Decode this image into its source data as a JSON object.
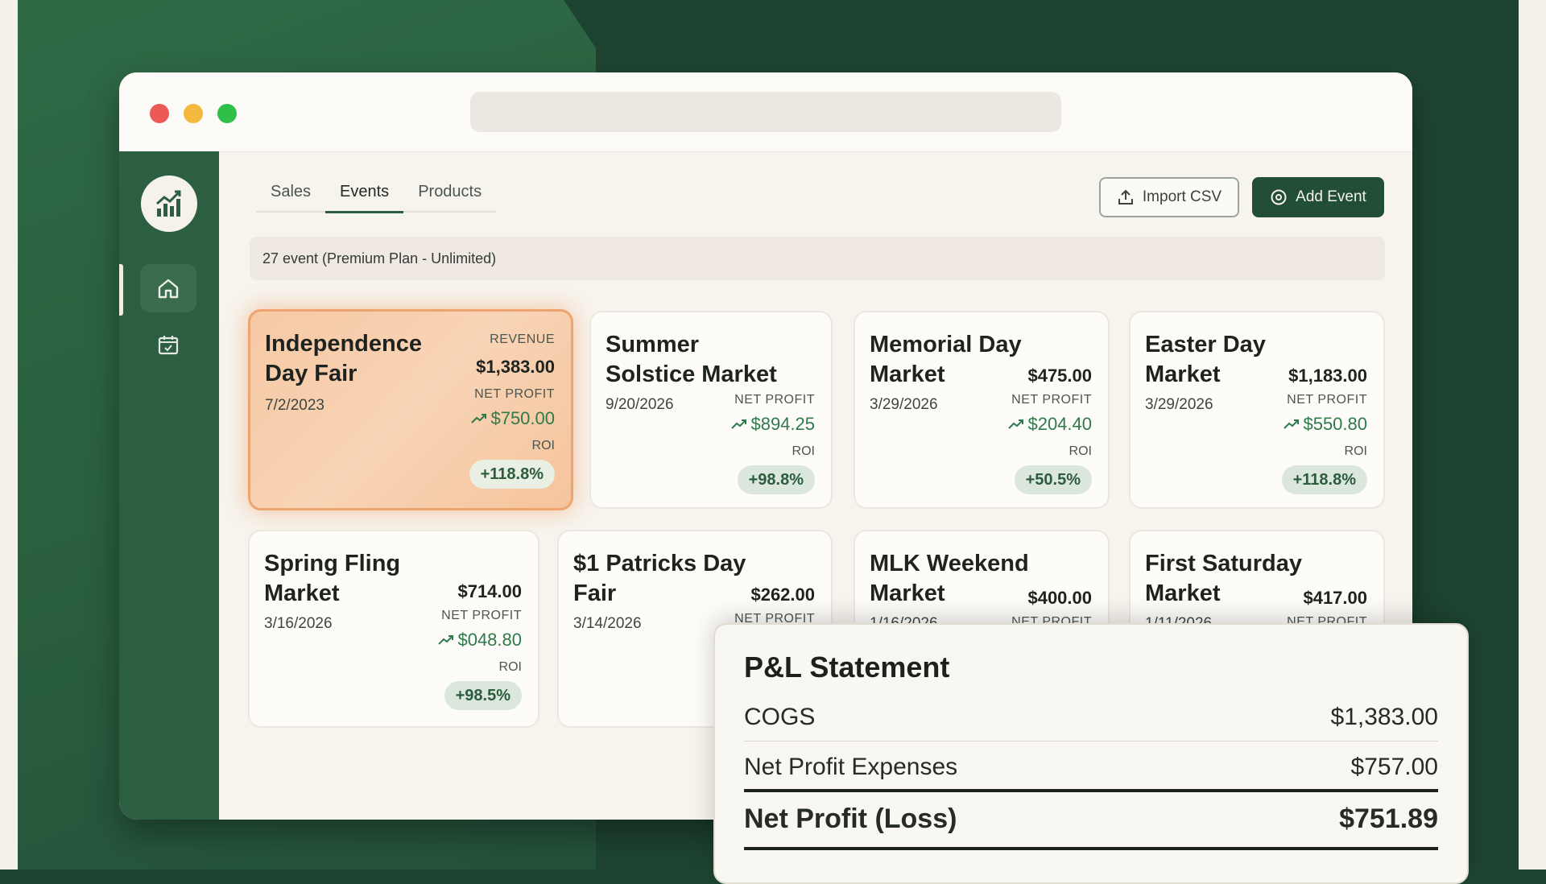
{
  "window": {
    "traffic_lights": [
      "close",
      "minimize",
      "maximize"
    ]
  },
  "sidebar": {
    "logo_icon": "chart-growth-icon",
    "items": [
      {
        "icon": "home-icon",
        "active": true
      },
      {
        "icon": "calendar-icon",
        "active": false
      }
    ]
  },
  "tabs": [
    {
      "label": "Sales",
      "active": false
    },
    {
      "label": "Events",
      "active": true
    },
    {
      "label": "Products",
      "active": false
    }
  ],
  "toolbar": {
    "import_label": "Import CSV",
    "add_label": "Add Event"
  },
  "plan_text": "27 event (Premium Plan - Unlimited)",
  "cards": [
    {
      "name": "Independence Day Fair",
      "date": "7/2/2023",
      "revenue_label": "REVENUE",
      "revenue": "$1,383.00",
      "np_label": "NET PROFIT",
      "net_profit": "$750.00",
      "roi_label": "ROI",
      "roi": "+118.8%"
    },
    {
      "name": "Summer Solstice Market",
      "date": "9/20/2026",
      "np_label": "NET PROFIT",
      "net_profit": "$894.25",
      "roi_label": "ROI",
      "roi": "+98.8%"
    },
    {
      "name": "Memorial Day Market",
      "date": "3/29/2026",
      "revenue": "$475.00",
      "np_label": "NET PROFIT",
      "net_profit": "$204.40",
      "roi_label": "ROI",
      "roi": "+50.5%"
    },
    {
      "name": "Easter Day Market",
      "date": "3/29/2026",
      "revenue": "$1,183.00",
      "np_label": "NET PROFIT",
      "net_profit": "$550.80",
      "roi_label": "ROI",
      "roi": "+118.8%"
    },
    {
      "name": "Spring Fling Market",
      "date": "3/16/2026",
      "revenue": "$714.00",
      "np_label": "NET PROFIT",
      "net_profit": "$048.80",
      "roi_label": "ROI",
      "roi": "+98.5%"
    },
    {
      "name": "$1 Patricks Day Fair",
      "date": "3/14/2026",
      "revenue": "$262.00",
      "np_label": "NET PROFIT"
    },
    {
      "name": "MLK Weekend Market",
      "date": "1/16/2026",
      "revenue": "$400.00",
      "np_label": "NET PROFIT"
    },
    {
      "name": "First Saturday Market",
      "date": "1/11/2026",
      "revenue": "$417.00",
      "np_label": "NET PROFIT"
    }
  ],
  "pl": {
    "title": "P&L Statement",
    "rows": [
      {
        "label": "COGS",
        "value": "$1,383.00"
      },
      {
        "label": "Net Profit Expenses",
        "value": "$757.00"
      }
    ],
    "total": {
      "label": "Net Profit (Loss)",
      "value": "$751.89"
    }
  },
  "colors": {
    "brand_green": "#2c5e41",
    "accent_orange": "#eea470",
    "profit_green": "#2f7a4a"
  }
}
